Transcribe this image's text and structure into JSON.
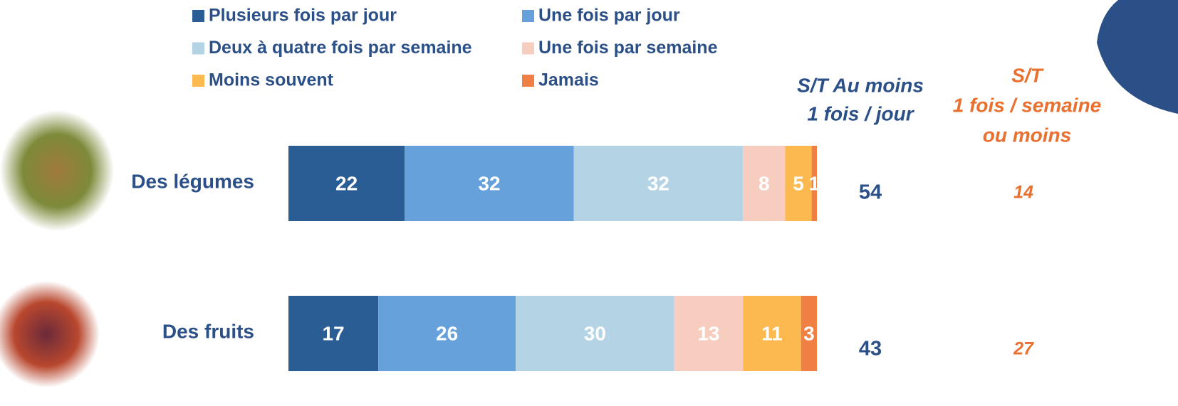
{
  "chart_data": {
    "type": "stacked_bar_horizontal",
    "categories": [
      "Des légumes",
      "Des fruits"
    ],
    "xlim": [
      0,
      100
    ],
    "series": [
      {
        "name": "Plusieurs fois par jour",
        "color": "#2a5d94",
        "values": [
          22,
          17
        ]
      },
      {
        "name": "Une fois par jour",
        "color": "#66a1dc",
        "values": [
          32,
          26
        ]
      },
      {
        "name": "Deux à quatre fois par semaine",
        "color": "#b4d4e6",
        "values": [
          32,
          30
        ]
      },
      {
        "name": "Une fois par semaine",
        "color": "#f7cdbf",
        "values": [
          8,
          13
        ]
      },
      {
        "name": "Moins souvent",
        "color": "#fbb94f",
        "values": [
          5,
          11
        ]
      },
      {
        "name": "Jamais",
        "color": "#f07f44",
        "values": [
          1,
          3
        ]
      }
    ],
    "summaries": [
      {
        "title_lines": [
          "S/T Au moins",
          "1 fois / jour"
        ],
        "color": "#2b4f87",
        "values": [
          54,
          43
        ]
      },
      {
        "title_lines": [
          "S/T",
          "1 fois / semaine",
          "ou moins"
        ],
        "color": "#e9702e",
        "values": [
          14,
          27
        ]
      }
    ]
  }
}
